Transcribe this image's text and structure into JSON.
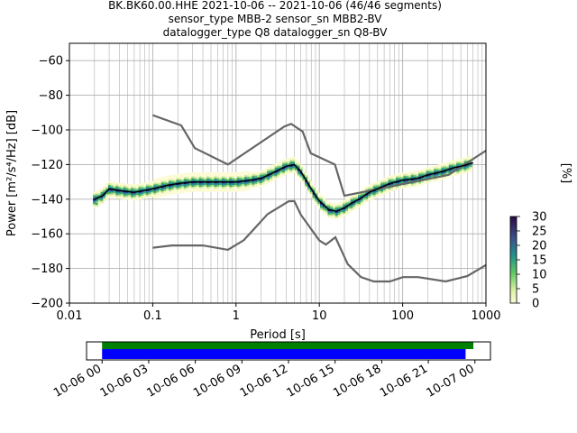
{
  "title_lines": [
    "BK.BK60.00.HHE   2021-10-06 -- 2021-10-06  (46/46 segments)",
    "sensor_type MBB-2 sensor_sn MBB2-BV",
    "datalogger_type Q8 datalogger_sn Q8-BV"
  ],
  "chart_data": [
    {
      "type": "heatmap",
      "xlabel": "Period [s]",
      "ylabel": "Power [m²/s⁴/Hz] [dB]",
      "xscale": "log",
      "xlim": [
        0.01,
        1000
      ],
      "ylim": [
        -200,
        -50
      ],
      "xticks": [
        {
          "value": 0.01,
          "label": "0.01"
        },
        {
          "value": 0.1,
          "label": "0.1"
        },
        {
          "value": 1,
          "label": "1"
        },
        {
          "value": 10,
          "label": "10"
        },
        {
          "value": 100,
          "label": "100"
        },
        {
          "value": 1000,
          "label": "1000"
        }
      ],
      "yticks": [
        -60,
        -80,
        -100,
        -120,
        -140,
        -160,
        -180,
        -200
      ],
      "grid": true,
      "noise_models": {
        "color": "#666666",
        "high": {
          "x": [
            0.1,
            0.22,
            0.32,
            0.8,
            3.8,
            4.6,
            6.3,
            7.9,
            15.4,
            20,
            354.8,
            1000
          ],
          "y": [
            -91.5,
            -97.4,
            -110.5,
            -120,
            -98,
            -96.5,
            -101,
            -113.5,
            -120,
            -138,
            -126,
            -112
          ]
        },
        "low": {
          "x": [
            0.1,
            0.17,
            0.4,
            0.8,
            1.24,
            2.4,
            4.3,
            5,
            6,
            10,
            12,
            15.6,
            21.9,
            31.6,
            45,
            70,
            101,
            154,
            328,
            600,
            1000
          ],
          "y": [
            -168,
            -166.7,
            -166.7,
            -169.2,
            -163.7,
            -148.6,
            -141.2,
            -141.1,
            -149,
            -163.8,
            -166.2,
            -162,
            -177.5,
            -185,
            -187.5,
            -187.5,
            -185,
            -185,
            -187.5,
            -184.4,
            -178
          ]
        }
      },
      "median": {
        "color": "#000000",
        "x": [
          0.02,
          0.025,
          0.03,
          0.04,
          0.06,
          0.1,
          0.15,
          0.2,
          0.3,
          0.5,
          0.8,
          1,
          1.5,
          2,
          3,
          4,
          5,
          6,
          8,
          10,
          13,
          16,
          20,
          25,
          30,
          40,
          50,
          70,
          100,
          150,
          200,
          300,
          400,
          500,
          700
        ],
        "y": [
          -140,
          -138,
          -134,
          -135,
          -136,
          -134,
          -132,
          -131,
          -130,
          -130,
          -130,
          -130,
          -129,
          -128,
          -124,
          -121,
          -120,
          -124,
          -134,
          -141,
          -146,
          -147,
          -145,
          -142,
          -140,
          -136,
          -134,
          -131,
          -129,
          -128,
          -126,
          -124,
          -122,
          -121,
          -119
        ]
      },
      "density": {
        "colormap": "viridis_r",
        "color_range": [
          0,
          30
        ],
        "colorbar_label": "[%]",
        "colorbar_ticks": [
          0,
          5,
          10,
          15,
          20,
          25,
          30
        ]
      }
    },
    {
      "type": "bar",
      "x_tick_labels": [
        "10-06 00",
        "10-06 03",
        "10-06 06",
        "10-06 09",
        "10-06 12",
        "10-06 15",
        "10-06 18",
        "10-06 21",
        "10-07 00"
      ],
      "xlim_hours": [
        -1,
        25
      ],
      "series": [
        {
          "color": "#008000",
          "start_hour": 0,
          "end_hour": 23.9
        },
        {
          "color": "#0000ff",
          "start_hour": 0,
          "end_hour": 23.4
        }
      ]
    }
  ]
}
